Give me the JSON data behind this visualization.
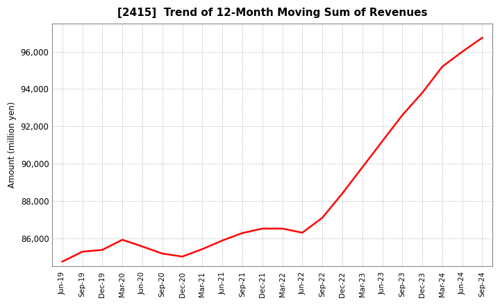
{
  "title": "[2415]  Trend of 12-Month Moving Sum of Revenues",
  "ylabel": "Amount (million yen)",
  "line_color": "#ff0000",
  "line_width": 1.8,
  "background_color": "#ffffff",
  "grid_color": "#aaaaaa",
  "ylim": [
    84500,
    97500
  ],
  "yticks": [
    86000,
    88000,
    90000,
    92000,
    94000,
    96000
  ],
  "labels": [
    "Jun-19",
    "Sep-19",
    "Dec-19",
    "Mar-20",
    "Jun-20",
    "Sep-20",
    "Dec-20",
    "Mar-21",
    "Jun-21",
    "Sep-21",
    "Dec-21",
    "Mar-22",
    "Jun-22",
    "Sep-22",
    "Dec-22",
    "Mar-23",
    "Jun-23",
    "Sep-23",
    "Dec-23",
    "Mar-24",
    "Jun-24",
    "Sep-24"
  ],
  "values": [
    84750,
    85280,
    85380,
    85920,
    85560,
    85180,
    85020,
    85420,
    85880,
    86280,
    86520,
    86520,
    86300,
    87100,
    88400,
    89800,
    91200,
    92600,
    93800,
    95200,
    96000,
    96750
  ]
}
